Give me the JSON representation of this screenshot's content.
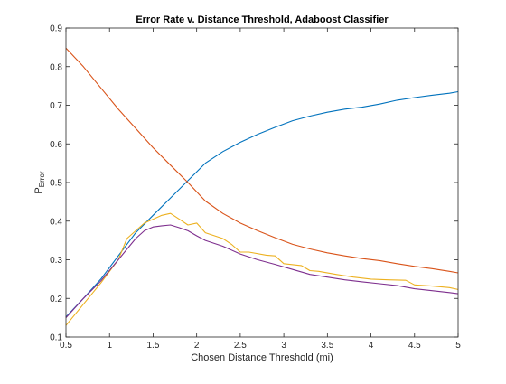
{
  "chart_data": {
    "type": "line",
    "title": "Error Rate v. Distance Threshold, Adaboost Classifier",
    "xlabel": "Chosen Distance Threshold (mi)",
    "ylabel": "P",
    "ylabel_subscript": "Error",
    "xlim": [
      0.5,
      5
    ],
    "ylim": [
      0.1,
      0.9
    ],
    "xticks": [
      0.5,
      1,
      1.5,
      2,
      2.5,
      3,
      3.5,
      4,
      4.5,
      5
    ],
    "xtick_labels": [
      "0.5",
      "1",
      "1.5",
      "2",
      "2.5",
      "3",
      "3.5",
      "4",
      "4.5",
      "5"
    ],
    "yticks": [
      0.1,
      0.2,
      0.3,
      0.4,
      0.5,
      0.6,
      0.7,
      0.8,
      0.9
    ],
    "ytick_labels": [
      "0.1",
      "0.2",
      "0.3",
      "0.4",
      "0.5",
      "0.6",
      "0.7",
      "0.8",
      "0.9"
    ],
    "grid": false,
    "series": [
      {
        "color": "#0072BD",
        "x": [
          0.5,
          0.7,
          0.9,
          1.1,
          1.3,
          1.5,
          1.7,
          1.9,
          2.1,
          2.3,
          2.5,
          2.7,
          2.9,
          3.1,
          3.3,
          3.5,
          3.7,
          3.9,
          4.1,
          4.3,
          4.5,
          4.7,
          4.9,
          5.0
        ],
        "y": [
          0.152,
          0.2,
          0.25,
          0.31,
          0.37,
          0.415,
          0.46,
          0.505,
          0.55,
          0.58,
          0.604,
          0.625,
          0.643,
          0.66,
          0.672,
          0.682,
          0.69,
          0.695,
          0.703,
          0.713,
          0.72,
          0.726,
          0.731,
          0.735
        ]
      },
      {
        "color": "#D95319",
        "x": [
          0.5,
          0.7,
          0.9,
          1.1,
          1.3,
          1.5,
          1.7,
          1.9,
          2.1,
          2.3,
          2.5,
          2.7,
          2.9,
          3.1,
          3.3,
          3.5,
          3.7,
          3.9,
          4.1,
          4.3,
          4.5,
          4.7,
          4.9,
          5.0
        ],
        "y": [
          0.848,
          0.8,
          0.745,
          0.69,
          0.64,
          0.59,
          0.545,
          0.5,
          0.452,
          0.42,
          0.395,
          0.375,
          0.357,
          0.34,
          0.328,
          0.318,
          0.31,
          0.303,
          0.298,
          0.29,
          0.283,
          0.277,
          0.27,
          0.266
        ]
      },
      {
        "color": "#EDB120",
        "x": [
          0.5,
          0.7,
          0.9,
          1.1,
          1.2,
          1.3,
          1.4,
          1.5,
          1.6,
          1.7,
          1.8,
          1.9,
          2.0,
          2.1,
          2.3,
          2.4,
          2.5,
          2.6,
          2.8,
          2.9,
          3.0,
          3.2,
          3.3,
          3.4,
          3.6,
          3.8,
          4.0,
          4.2,
          4.4,
          4.5,
          4.7,
          4.9,
          5.0
        ],
        "y": [
          0.13,
          0.185,
          0.24,
          0.3,
          0.355,
          0.375,
          0.395,
          0.405,
          0.415,
          0.42,
          0.405,
          0.39,
          0.395,
          0.37,
          0.355,
          0.34,
          0.32,
          0.32,
          0.312,
          0.31,
          0.29,
          0.285,
          0.272,
          0.27,
          0.262,
          0.255,
          0.25,
          0.248,
          0.247,
          0.235,
          0.232,
          0.228,
          0.223
        ]
      },
      {
        "color": "#7E2F8E",
        "x": [
          0.5,
          0.7,
          0.9,
          1.1,
          1.3,
          1.4,
          1.5,
          1.6,
          1.7,
          1.8,
          1.9,
          2.0,
          2.1,
          2.3,
          2.5,
          2.7,
          2.9,
          3.1,
          3.3,
          3.5,
          3.7,
          3.9,
          4.1,
          4.3,
          4.5,
          4.7,
          4.9,
          5.0
        ],
        "y": [
          0.15,
          0.2,
          0.245,
          0.3,
          0.355,
          0.375,
          0.385,
          0.388,
          0.39,
          0.383,
          0.375,
          0.362,
          0.35,
          0.335,
          0.315,
          0.3,
          0.288,
          0.275,
          0.262,
          0.255,
          0.248,
          0.243,
          0.238,
          0.233,
          0.225,
          0.22,
          0.215,
          0.212
        ]
      }
    ]
  }
}
